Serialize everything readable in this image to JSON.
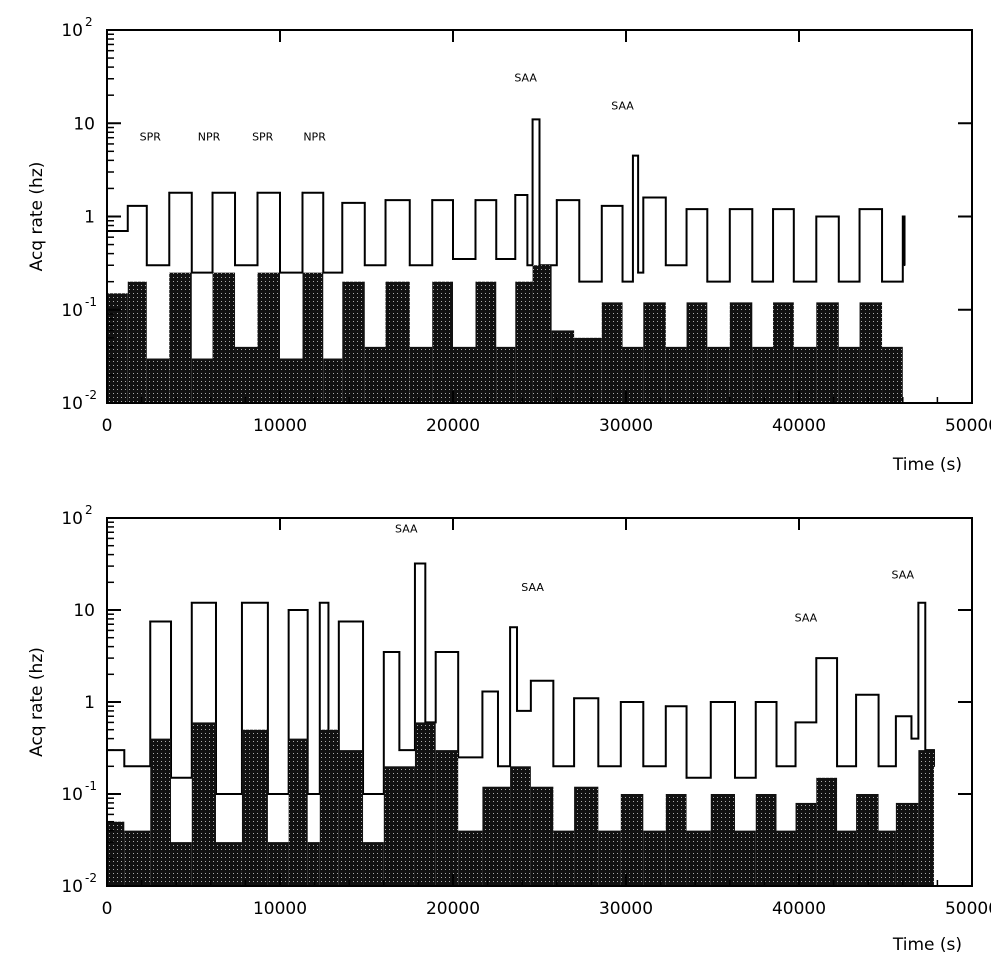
{
  "chart_data": [
    {
      "type": "line",
      "xlabel": "Time (s)",
      "ylabel": "Acq rate (hz)",
      "xlim": [
        0,
        50000
      ],
      "ylim": [
        0.01,
        100
      ],
      "yscale": "log",
      "grid": false,
      "x_ticks": [
        "0",
        "10000",
        "20000",
        "30000",
        "40000",
        "50000"
      ],
      "y_ticks": [
        {
          "base": "10",
          "exp": "-2"
        },
        {
          "base": "10",
          "exp": "-1"
        },
        {
          "base": "1",
          "exp": ""
        },
        {
          "base": "10",
          "exp": ""
        },
        {
          "base": "10",
          "exp": "2"
        }
      ],
      "series": [
        {
          "style": "step-line",
          "x": [
            0,
            1200,
            2300,
            3600,
            4900,
            6100,
            7400,
            8700,
            10000,
            11300,
            12500,
            13600,
            14900,
            16100,
            17500,
            18800,
            20000,
            21300,
            22500,
            23600,
            24300,
            24600,
            25000,
            26000,
            27300,
            28600,
            29800,
            30400,
            30700,
            31000,
            32300,
            33500,
            34700,
            36000,
            37300,
            38500,
            39700,
            41000,
            42300,
            43500,
            44800,
            46000,
            46100
          ],
          "y": [
            0.7,
            1.3,
            0.3,
            1.8,
            0.25,
            1.8,
            0.3,
            1.8,
            0.25,
            1.8,
            0.25,
            1.4,
            0.3,
            1.5,
            0.3,
            1.5,
            0.35,
            1.5,
            0.35,
            1.7,
            0.3,
            11,
            0.3,
            1.5,
            0.2,
            1.3,
            0.2,
            4.5,
            0.25,
            1.6,
            0.3,
            1.2,
            0.2,
            1.2,
            0.2,
            1.2,
            0.2,
            1.0,
            0.2,
            1.2,
            0.2,
            1.0,
            0.3
          ]
        },
        {
          "style": "filled-histogram",
          "x": [
            0,
            1200,
            2300,
            3600,
            4900,
            6100,
            7400,
            8700,
            10000,
            11300,
            12500,
            13600,
            14900,
            16100,
            17500,
            18800,
            20000,
            21300,
            22500,
            23600,
            24600,
            25700,
            27000,
            28600,
            29800,
            31000,
            32300,
            33500,
            34700,
            36000,
            37300,
            38500,
            39700,
            41000,
            42300,
            43500,
            44800,
            46000
          ],
          "y": [
            0.15,
            0.2,
            0.03,
            0.25,
            0.03,
            0.25,
            0.04,
            0.25,
            0.03,
            0.25,
            0.03,
            0.2,
            0.04,
            0.2,
            0.04,
            0.2,
            0.04,
            0.2,
            0.04,
            0.2,
            0.3,
            0.06,
            0.05,
            0.12,
            0.04,
            0.12,
            0.04,
            0.12,
            0.04,
            0.12,
            0.04,
            0.12,
            0.04,
            0.12,
            0.04,
            0.12,
            0.04,
            0.08
          ]
        }
      ],
      "annotations": [
        {
          "text": "SPR",
          "x": 2500,
          "y": 6.5
        },
        {
          "text": "NPR",
          "x": 5900,
          "y": 6.5
        },
        {
          "text": "SPR",
          "x": 9000,
          "y": 6.5
        },
        {
          "text": "NPR",
          "x": 12000,
          "y": 6.5
        },
        {
          "text": "SAA",
          "x": 24200,
          "y": 28
        },
        {
          "text": "SAA",
          "x": 29800,
          "y": 14
        }
      ]
    },
    {
      "type": "line",
      "xlabel": "Time (s)",
      "ylabel": "Acq rate (hz)",
      "xlim": [
        0,
        50000
      ],
      "ylim": [
        0.01,
        100
      ],
      "yscale": "log",
      "grid": false,
      "x_ticks": [
        "0",
        "10000",
        "20000",
        "30000",
        "40000",
        "50000"
      ],
      "y_ticks": [
        {
          "base": "10",
          "exp": "-2"
        },
        {
          "base": "10",
          "exp": "-1"
        },
        {
          "base": "1",
          "exp": ""
        },
        {
          "base": "10",
          "exp": ""
        },
        {
          "base": "10",
          "exp": "2"
        }
      ],
      "series": [
        {
          "style": "step-line",
          "x": [
            0,
            1000,
            2500,
            3700,
            4900,
            6300,
            7800,
            9300,
            10500,
            11600,
            12300,
            12800,
            13400,
            14800,
            16000,
            16900,
            17800,
            18400,
            19000,
            20300,
            21700,
            22600,
            23300,
            23700,
            24500,
            25800,
            27000,
            28400,
            29700,
            31000,
            32300,
            33500,
            34900,
            36300,
            37500,
            38700,
            39800,
            41000,
            42200,
            43300,
            44600,
            45600,
            46500,
            46900,
            47300,
            47800
          ],
          "y": [
            0.3,
            0.2,
            7.5,
            0.15,
            12,
            0.1,
            12,
            0.1,
            10,
            0.1,
            12,
            0.15,
            7.5,
            0.1,
            3.5,
            0.3,
            32,
            0.6,
            3.5,
            0.25,
            1.3,
            0.2,
            6.5,
            0.8,
            1.7,
            0.2,
            1.1,
            0.2,
            1.0,
            0.2,
            0.9,
            0.15,
            1.0,
            0.15,
            1.0,
            0.2,
            0.6,
            3.0,
            0.2,
            1.2,
            0.2,
            0.7,
            0.4,
            12,
            0.3,
            0.2
          ]
        },
        {
          "style": "filled-histogram",
          "x": [
            0,
            1000,
            2500,
            3700,
            4900,
            6300,
            7800,
            9300,
            10500,
            11600,
            12300,
            13400,
            14800,
            16000,
            17800,
            19000,
            20300,
            21700,
            23300,
            24500,
            25800,
            27000,
            28400,
            29700,
            31000,
            32300,
            33500,
            34900,
            36300,
            37500,
            38700,
            39800,
            41000,
            42200,
            43300,
            44600,
            45600,
            46900,
            47800
          ],
          "y": [
            0.05,
            0.04,
            0.4,
            0.03,
            0.6,
            0.03,
            0.5,
            0.03,
            0.4,
            0.03,
            0.5,
            0.3,
            0.03,
            0.2,
            0.6,
            0.3,
            0.04,
            0.12,
            0.2,
            0.12,
            0.04,
            0.12,
            0.04,
            0.1,
            0.04,
            0.1,
            0.04,
            0.1,
            0.04,
            0.1,
            0.04,
            0.08,
            0.15,
            0.04,
            0.1,
            0.04,
            0.08,
            0.3,
            0.05
          ]
        }
      ],
      "annotations": [
        {
          "text": "SAA",
          "x": 17300,
          "y": 70
        },
        {
          "text": "SAA",
          "x": 24600,
          "y": 16
        },
        {
          "text": "SAA",
          "x": 40400,
          "y": 7.5
        },
        {
          "text": "SAA",
          "x": 46000,
          "y": 22
        }
      ]
    }
  ]
}
